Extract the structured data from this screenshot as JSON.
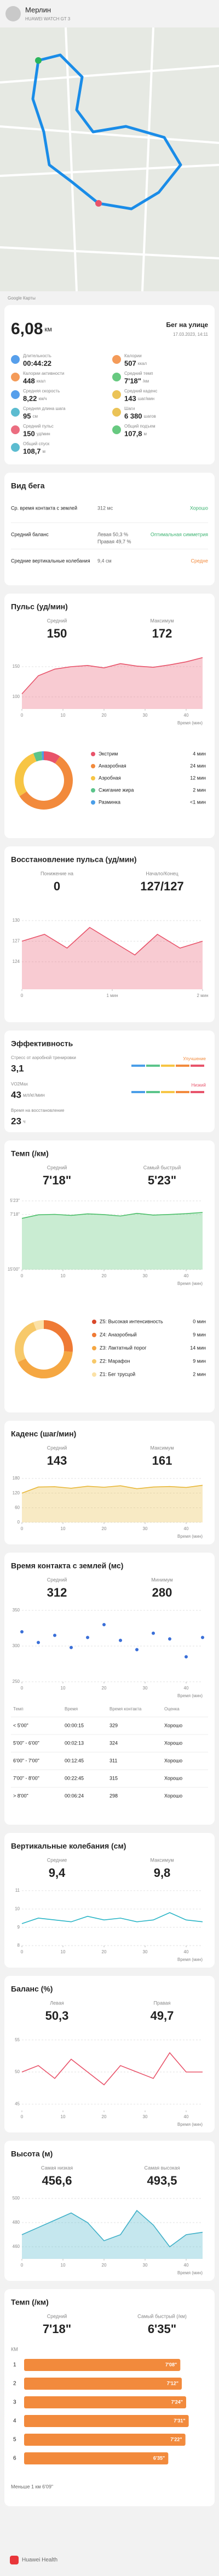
{
  "header": {
    "name": "Мерлин",
    "device": "HUAWEI WATCH GT 3"
  },
  "map": {
    "credit": "Google Карты"
  },
  "summary": {
    "distance": "6,08",
    "distance_unit": "км",
    "activity": "Бег на улице",
    "date": "17.03.2023, 14:11",
    "metrics": [
      {
        "label": "Длительность",
        "value": "00:44:22"
      },
      {
        "label": "Калории",
        "value": "507",
        "unit": "ккал"
      },
      {
        "label": "Калории активности",
        "value": "448",
        "unit": "ккал"
      },
      {
        "label": "Средний темп",
        "value": "7'18\"",
        "unit": "/км"
      },
      {
        "label": "Средняя скорость",
        "value": "8,22",
        "unit": "км/ч"
      },
      {
        "label": "Средний каденс",
        "value": "143",
        "unit": "шаг/мин"
      },
      {
        "label": "Средняя длина шага",
        "value": "95",
        "unit": "см"
      },
      {
        "label": "Шаги",
        "value": "6 380",
        "unit": "шагов"
      },
      {
        "label": "Средний пульс",
        "value": "150",
        "unit": "уд/мин"
      },
      {
        "label": "Общий подъем",
        "value": "107,8",
        "unit": "м"
      },
      {
        "label": "Общий спуск",
        "value": "108,7",
        "unit": "м"
      }
    ]
  },
  "running_form": {
    "title": "Вид бега",
    "rows": [
      {
        "label": "Ср. время контакта с землей",
        "value": "312 мс",
        "rating": "Хорошо"
      },
      {
        "label": "Средний баланс",
        "value": "Левая 50,3 %",
        "value2": "Правая 49,7 %",
        "rating": "Оптимальная симметрия"
      },
      {
        "label": "Средние вертикальные колебания",
        "value": "9,4 см",
        "rating": "Средне"
      }
    ]
  },
  "heart_rate": {
    "title": "Пульс (уд/мин)",
    "stats": [
      {
        "label": "Средний",
        "value": "150"
      },
      {
        "label": "Максимум",
        "value": "172"
      }
    ],
    "chart": {
      "type": "area",
      "color": "#e8536a",
      "x": [
        0,
        4,
        8,
        12,
        16,
        20,
        24,
        28,
        32,
        36,
        40,
        44
      ],
      "values": [
        105,
        135,
        146,
        150,
        152,
        148,
        155,
        151,
        149,
        153,
        158,
        165
      ],
      "xlim": [
        0,
        44
      ],
      "xticks": [
        0,
        10,
        20,
        30,
        40
      ],
      "ylim": [
        80,
        180
      ],
      "yticks": [
        100,
        150
      ],
      "x_label": "Время (мин)"
    },
    "zones": [
      {
        "name": "Экстрим",
        "minutes": 4,
        "label": "4 мин",
        "color": "#e8536a"
      },
      {
        "name": "Анаэробная",
        "minutes": 24,
        "label": "24 мин",
        "color": "#f28a3c"
      },
      {
        "name": "Аэробная",
        "minutes": 12,
        "label": "12 мин",
        "color": "#f7c544"
      },
      {
        "name": "Сжигание жира",
        "minutes": 2,
        "label": "2 мин",
        "color": "#5bc48a"
      },
      {
        "name": "Разминка",
        "minutes": 0.5,
        "label": "<1 мин",
        "color": "#4a9ee8"
      }
    ]
  },
  "recovery": {
    "title": "Восстановление пульса (уд/мин)",
    "stats": [
      {
        "label": "Понижение на",
        "value": "0"
      },
      {
        "label": "Начало/Конец",
        "value": "127/127"
      }
    ],
    "chart": {
      "type": "area",
      "color": "#e8536a",
      "x": [
        0,
        0.25,
        0.5,
        0.75,
        1,
        1.25,
        1.5,
        1.75,
        2
      ],
      "values": [
        127,
        128,
        126,
        129,
        127,
        125,
        128,
        126,
        127
      ],
      "xlim": [
        0,
        2
      ],
      "xticks": [
        0,
        {
          "value": 1,
          "label": "1 мин"
        },
        {
          "value": 2,
          "label": "2 мин"
        }
      ],
      "ylim": [
        120,
        132
      ],
      "yticks": [
        124,
        127,
        130
      ]
    }
  },
  "efficiency": {
    "title": "Эффективность",
    "items": [
      {
        "label": "Стресс от аэробной тренировки",
        "value": "3,1",
        "status": "Улучшение",
        "color": "#f28a3c"
      },
      {
        "label": "VO2Max",
        "value": "43",
        "unit": "мл/кг/мин",
        "status": "Низкий",
        "color": "#e8536a"
      },
      {
        "label": "Время на восстановление",
        "value": "23",
        "unit": "ч"
      }
    ]
  },
  "pace": {
    "title": "Темп (/км)",
    "stats": [
      {
        "label": "Средний",
        "value": "7'18\""
      },
      {
        "label": "Самый быстрый",
        "value": "5'23\""
      }
    ],
    "chart": {
      "type": "area",
      "color": "#4cbf6a",
      "x": [
        0,
        4,
        8,
        12,
        16,
        20,
        24,
        28,
        32,
        36,
        40,
        44
      ],
      "values": [
        470,
        440,
        436,
        445,
        432,
        438,
        450,
        428,
        442,
        437,
        430,
        420
      ],
      "xlim": [
        0,
        44
      ],
      "xticks": [
        0,
        10,
        20,
        30,
        40
      ],
      "ylim": [
        900,
        300
      ],
      "yticks": [
        {
          "value": 323,
          "label": "5'23\""
        },
        {
          "value": 438,
          "label": "7'18\""
        },
        {
          "value": 900,
          "label": "15'00\""
        }
      ],
      "x_label": "Время (мин)"
    },
    "zones": [
      {
        "name": "Z5: Высокая интенсивность",
        "minutes": 0,
        "label": "0 мин",
        "color": "#d9482b"
      },
      {
        "name": "Z4: Анаэробный",
        "minutes": 9,
        "label": "9 мин",
        "color": "#ef7a35"
      },
      {
        "name": "Z3: Лактатный порог",
        "minutes": 14,
        "label": "14 мин",
        "color": "#f5a742"
      },
      {
        "name": "Z2: Марафон",
        "minutes": 9,
        "label": "9 мин",
        "color": "#f7c96a"
      },
      {
        "name": "Z1: Бег трусцой",
        "minutes": 2,
        "label": "2 мин",
        "color": "#fbe1a6"
      }
    ]
  },
  "cadence": {
    "title": "Каденс (шаг/мин)",
    "stats": [
      {
        "label": "Средний",
        "value": "143"
      },
      {
        "label": "Максимум",
        "value": "161"
      }
    ],
    "chart": {
      "type": "area",
      "color": "#e8b83a",
      "x": [
        0,
        4,
        8,
        12,
        16,
        20,
        24,
        28,
        32,
        36,
        40,
        44
      ],
      "values": [
        120,
        145,
        146,
        140,
        148,
        144,
        150,
        138,
        145,
        147,
        143,
        152
      ],
      "xlim": [
        0,
        44
      ],
      "xticks": [
        0,
        10,
        20,
        30,
        40
      ],
      "ylim": [
        0,
        180
      ],
      "yticks": [
        0,
        60,
        120,
        180
      ],
      "x_label": "Время (мин)"
    }
  },
  "ground_contact": {
    "title": "Время контакта с землей (мс)",
    "stats": [
      {
        "label": "Средний",
        "value": "312"
      },
      {
        "label": "Минимум",
        "value": "280"
      }
    ],
    "chart": {
      "type": "scatter",
      "color": "#3a6fd8",
      "x": [
        0,
        4,
        8,
        12,
        16,
        20,
        24,
        28,
        32,
        36,
        40,
        44
      ],
      "values": [
        320,
        305,
        315,
        298,
        312,
        330,
        308,
        295,
        318,
        310,
        285,
        312
      ],
      "xlim": [
        0,
        44
      ],
      "xticks": [
        0,
        10,
        20,
        30,
        40
      ],
      "ylim": [
        250,
        350
      ],
      "yticks": [
        250,
        300,
        350
      ],
      "x_label": "Время (мин)"
    },
    "table": {
      "header": [
        "Темп",
        "Время",
        "Время контакта",
        "Оценка"
      ],
      "rows": [
        [
          "< 5'00\"",
          "00:00:15",
          "329",
          "Хорошо"
        ],
        [
          "5'00\" - 6'00\"",
          "00:02:13",
          "324",
          "Хорошо"
        ],
        [
          "6'00\" - 7'00\"",
          "00:12:45",
          "311",
          "Хорошо"
        ],
        [
          "7'00\" - 8'00\"",
          "00:22:45",
          "315",
          "Хорошо"
        ],
        [
          "> 8'00\"",
          "00:06:24",
          "298",
          "Хорошо"
        ]
      ]
    }
  },
  "vertical": {
    "title": "Вертикальные колебания (см)",
    "stats": [
      {
        "label": "Средние",
        "value": "9,4"
      },
      {
        "label": "Максимум",
        "value": "9,8"
      }
    ],
    "chart": {
      "type": "line",
      "color": "#2ab5c6",
      "x": [
        0,
        4,
        8,
        12,
        16,
        20,
        24,
        28,
        32,
        36,
        40,
        44
      ],
      "values": [
        9.2,
        9.5,
        9.4,
        9.3,
        9.6,
        9.4,
        9.5,
        9.3,
        9.4,
        9.8,
        9.4,
        9.3
      ],
      "xlim": [
        0,
        44
      ],
      "xticks": [
        0,
        10,
        20,
        30,
        40
      ],
      "ylim": [
        8,
        11
      ],
      "yticks": [
        8,
        9,
        10,
        11
      ],
      "x_label": "Время (мин)"
    }
  },
  "balance": {
    "title": "Баланс (%)",
    "stats": [
      {
        "label": "Левая",
        "value": "50,3"
      },
      {
        "label": "Правая",
        "value": "49,7"
      }
    ],
    "chart": {
      "type": "line",
      "color": "#e8536a",
      "x": [
        0,
        4,
        8,
        12,
        16,
        20,
        24,
        28,
        32,
        36,
        40,
        44
      ],
      "values": [
        50,
        51,
        49,
        52,
        50,
        48,
        51,
        50,
        49,
        53,
        50,
        50
      ],
      "xlim": [
        0,
        44
      ],
      "xticks": [
        0,
        10,
        20,
        30,
        40
      ],
      "ylim": [
        44,
        56
      ],
      "yticks": [
        45,
        50,
        55
      ],
      "x_label": "Время (мин)"
    }
  },
  "altitude": {
    "title": "Высота (м)",
    "stats": [
      {
        "label": "Самая низкая",
        "value": "456,6"
      },
      {
        "label": "Самая высокая",
        "value": "493,5"
      }
    ],
    "chart": {
      "type": "area",
      "color": "#3fb0c8",
      "x": [
        0,
        4,
        8,
        12,
        16,
        20,
        24,
        28,
        32,
        36,
        40,
        44
      ],
      "values": [
        470,
        476,
        482,
        488,
        480,
        465,
        470,
        490,
        478,
        460,
        470,
        472
      ],
      "xlim": [
        0,
        44
      ],
      "xticks": [
        0,
        10,
        20,
        30,
        40
      ],
      "ylim": [
        450,
        500
      ],
      "yticks": [
        460,
        480,
        500
      ],
      "x_label": "Время (мин)"
    }
  },
  "pace_km": {
    "title": "Темп (/км)",
    "stats": [
      {
        "label": "Средний",
        "value": "7'18\""
      },
      {
        "label": "Самый быстрый (/км)",
        "value": "6'35\""
      }
    ],
    "chart": {
      "type": "bar",
      "header": "КМ",
      "color": "#f28a3c",
      "categories": [
        "1",
        "2",
        "3",
        "4",
        "5",
        "6"
      ],
      "values": [
        428,
        432,
        444,
        451,
        442,
        395
      ],
      "value_labels": [
        "7'08\"",
        "7'12\"",
        "7'24\"",
        "7'31\"",
        "7'22\"",
        "6'35\""
      ],
      "xlim": [
        0,
        480
      ]
    },
    "note": "Меньше 1 км 6'09\""
  },
  "footer": {
    "app": "Huawei Health"
  }
}
